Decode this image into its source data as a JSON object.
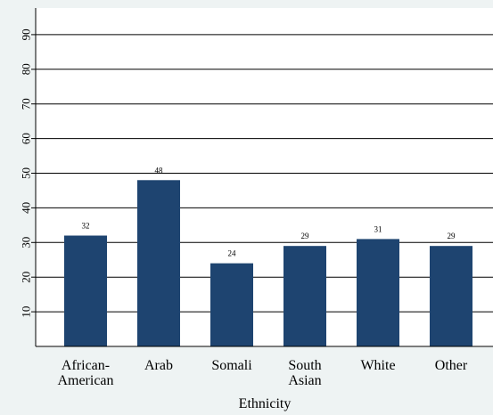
{
  "chart_data": {
    "type": "bar",
    "title": "",
    "xlabel": "Ethnicity",
    "ylabel": "",
    "categories": [
      [
        "African-",
        "American"
      ],
      [
        "Arab"
      ],
      [
        "Somali"
      ],
      [
        "South",
        "Asian"
      ],
      [
        "White"
      ],
      [
        "Other"
      ]
    ],
    "values": [
      32,
      48,
      24,
      29,
      31,
      29
    ],
    "data_labels": [
      "32",
      "48",
      "24",
      "29",
      "31",
      "29"
    ],
    "yticks": [
      10,
      20,
      30,
      40,
      50,
      60,
      70,
      80,
      90
    ],
    "ylim": [
      0,
      100
    ],
    "grid": true,
    "colors": {
      "bar": "#1e4470",
      "plot_background": "#ffffff",
      "page_background": "#eef3f3",
      "grid": "#000000"
    }
  }
}
